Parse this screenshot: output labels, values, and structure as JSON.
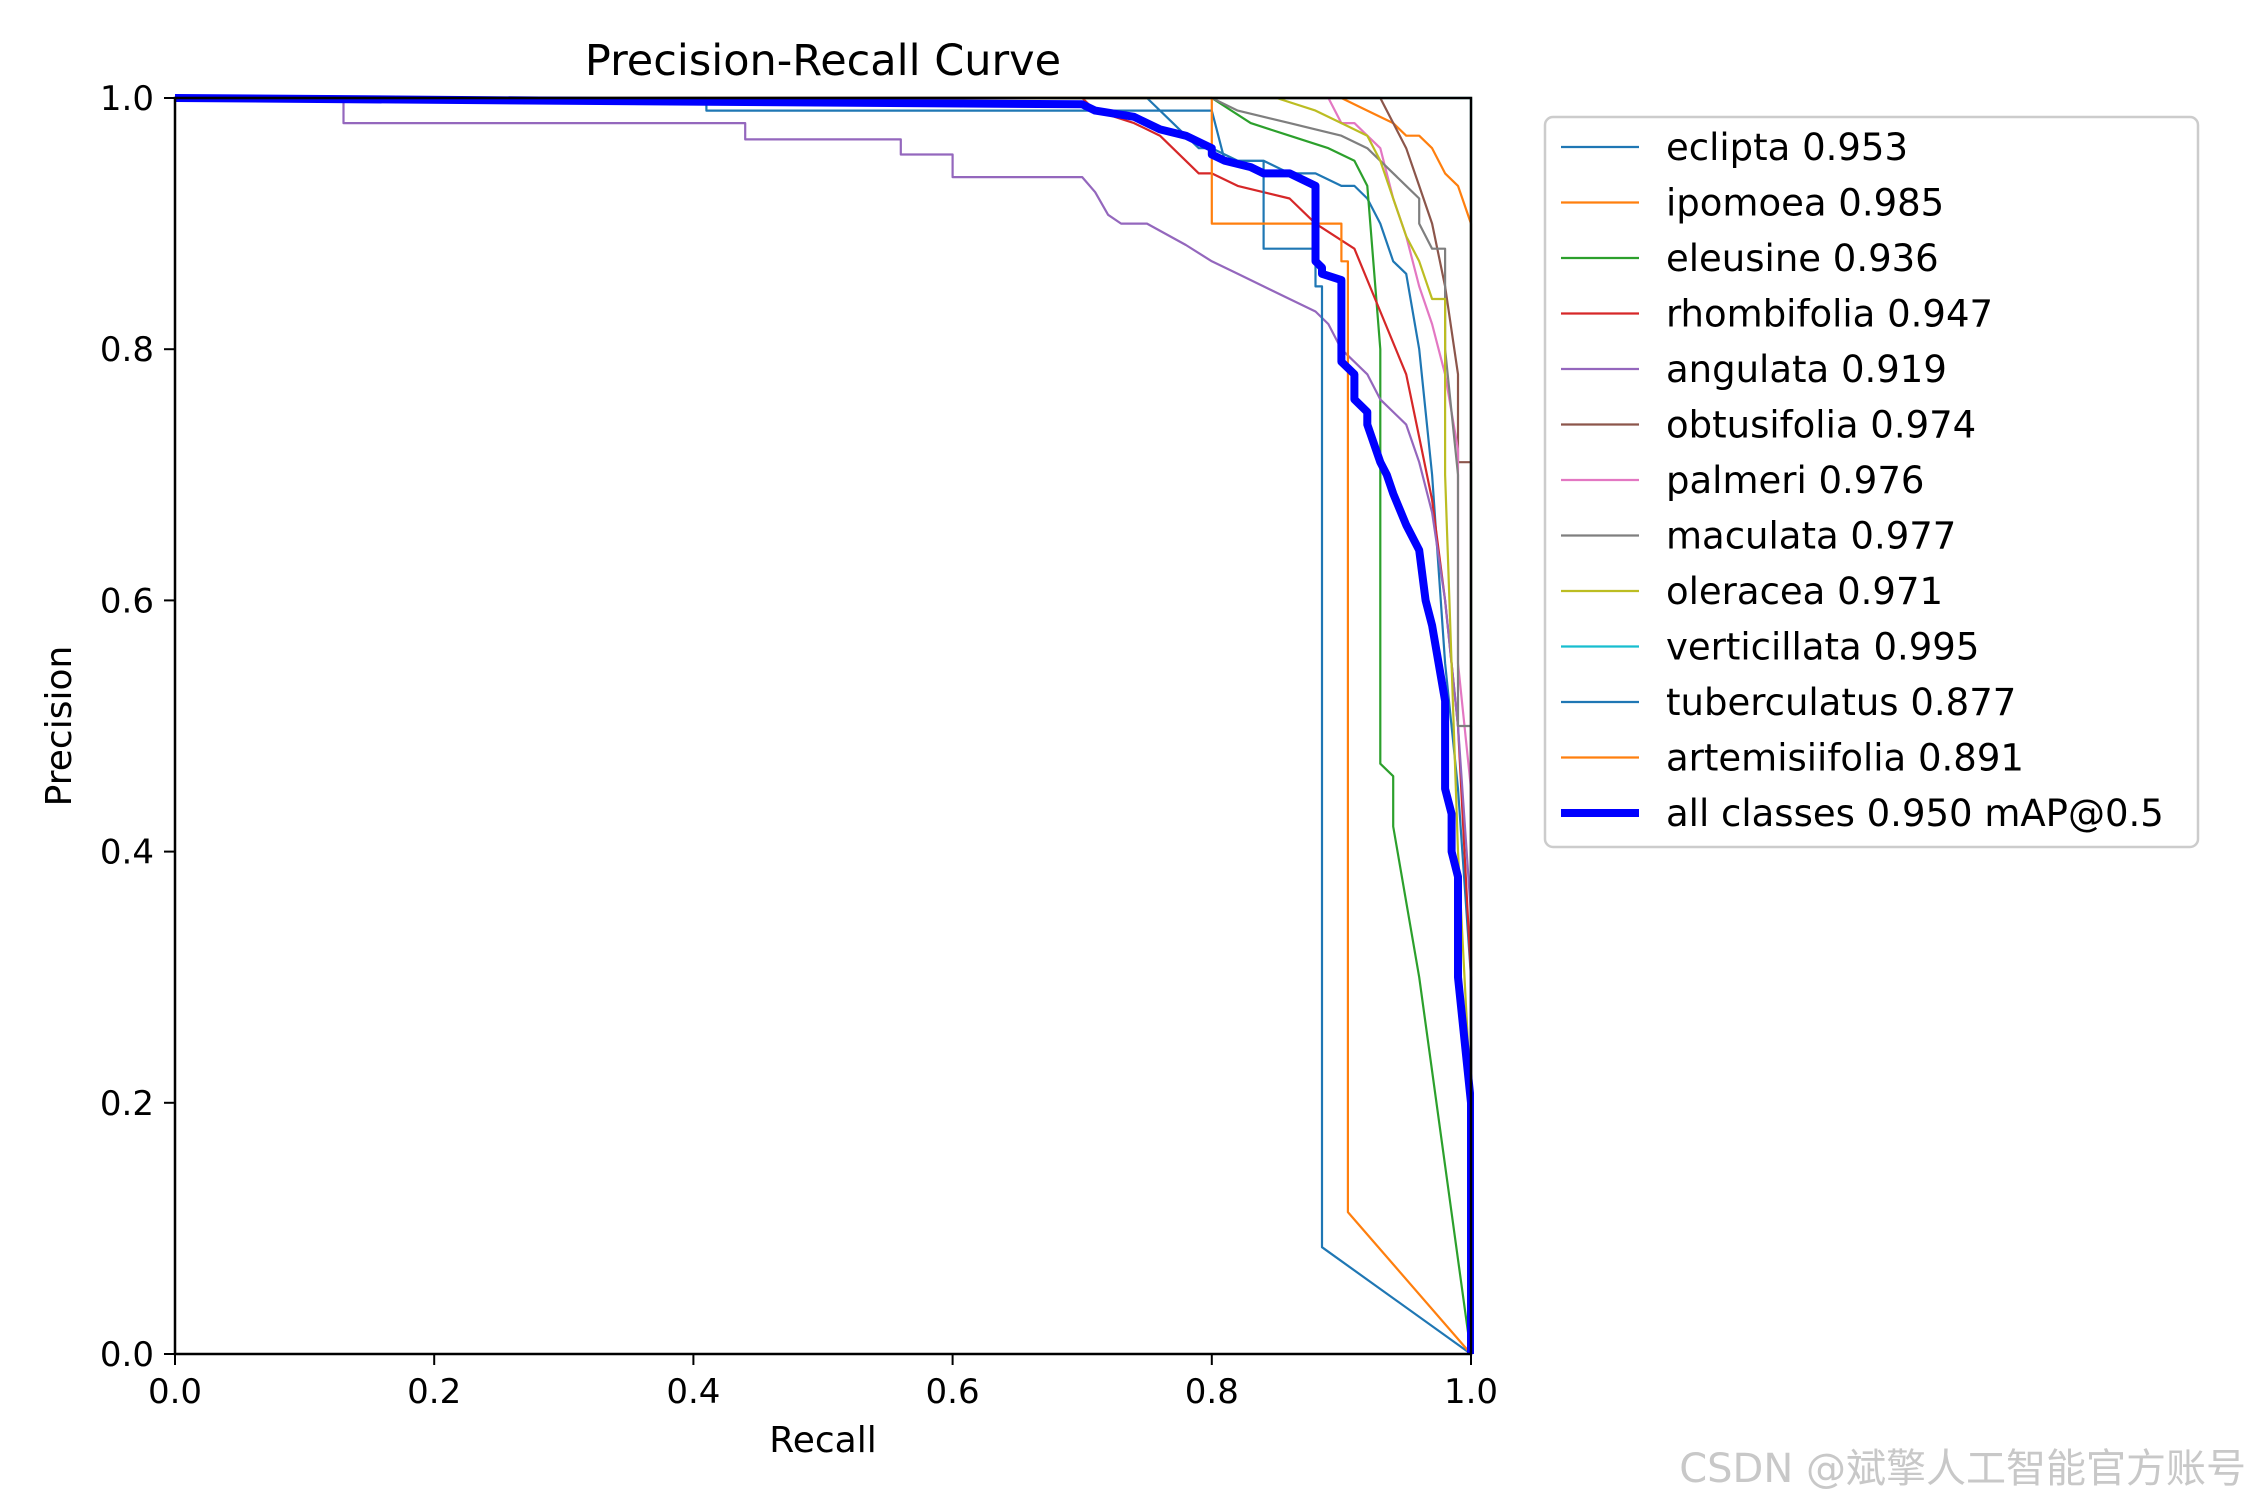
{
  "chart_data": {
    "type": "line",
    "title": "Precision-Recall Curve",
    "xlabel": "Recall",
    "ylabel": "Precision",
    "xlim": [
      0,
      1
    ],
    "ylim": [
      0,
      1
    ],
    "xticks": [
      "0.0",
      "0.2",
      "0.4",
      "0.6",
      "0.8",
      "1.0"
    ],
    "yticks": [
      "0.0",
      "0.2",
      "0.4",
      "0.6",
      "0.8",
      "1.0"
    ],
    "grid": false,
    "legend_position": "outside-right",
    "series": [
      {
        "name": "eclipta",
        "label": "eclipta 0.953",
        "ap": 0.953,
        "color": "#1f77b4",
        "width": "thin",
        "x": [
          0,
          0.75,
          0.77,
          0.79,
          0.8,
          0.82,
          0.84,
          0.86,
          0.88,
          0.9,
          0.91,
          0.92,
          0.93,
          0.94,
          0.95,
          0.96,
          0.97,
          0.98,
          0.99,
          1.0,
          1.0
        ],
        "y": [
          1.0,
          1.0,
          0.98,
          0.96,
          0.96,
          0.95,
          0.95,
          0.94,
          0.94,
          0.93,
          0.93,
          0.92,
          0.9,
          0.87,
          0.86,
          0.8,
          0.7,
          0.55,
          0.45,
          0.3,
          0.0
        ]
      },
      {
        "name": "ipomoea",
        "label": "ipomoea 0.985",
        "ap": 0.985,
        "color": "#ff7f0e",
        "width": "thin",
        "x": [
          0,
          0.88,
          0.9,
          0.92,
          0.94,
          0.95,
          0.96,
          0.97,
          0.98,
          0.99,
          1.0,
          1.0
        ],
        "y": [
          1.0,
          1.0,
          1.0,
          0.99,
          0.98,
          0.97,
          0.97,
          0.96,
          0.94,
          0.93,
          0.9,
          0.0
        ]
      },
      {
        "name": "eleusine",
        "label": "eleusine 0.936",
        "ap": 0.936,
        "color": "#2ca02c",
        "width": "thin",
        "x": [
          0,
          0.8,
          0.83,
          0.86,
          0.89,
          0.91,
          0.92,
          0.93,
          0.93,
          0.94,
          0.94,
          0.96,
          0.98,
          1.0
        ],
        "y": [
          1.0,
          1.0,
          0.98,
          0.97,
          0.96,
          0.95,
          0.93,
          0.8,
          0.47,
          0.46,
          0.42,
          0.3,
          0.15,
          0.0
        ]
      },
      {
        "name": "rhombifolia",
        "label": "rhombifolia 0.947",
        "ap": 0.947,
        "color": "#d62728",
        "width": "thin",
        "x": [
          0,
          0.7,
          0.71,
          0.74,
          0.76,
          0.79,
          0.8,
          0.82,
          0.86,
          0.88,
          0.91,
          0.93,
          0.95,
          0.96,
          0.97,
          0.98,
          0.99,
          1.0,
          1.0
        ],
        "y": [
          1.0,
          1.0,
          0.99,
          0.98,
          0.97,
          0.94,
          0.94,
          0.93,
          0.92,
          0.9,
          0.88,
          0.83,
          0.78,
          0.73,
          0.68,
          0.6,
          0.5,
          0.3,
          0.0
        ]
      },
      {
        "name": "angulata",
        "label": "angulata 0.919",
        "ap": 0.919,
        "color": "#9467bd",
        "width": "thin",
        "x": [
          0,
          0.13,
          0.13,
          0.44,
          0.44,
          0.56,
          0.56,
          0.6,
          0.6,
          0.7,
          0.71,
          0.72,
          0.73,
          0.75,
          0.78,
          0.8,
          0.82,
          0.84,
          0.86,
          0.88,
          0.89,
          0.9,
          0.92,
          0.93,
          0.95,
          0.96,
          0.97,
          0.98,
          0.99,
          1.0,
          1.0
        ],
        "y": [
          1.0,
          1.0,
          0.98,
          0.98,
          0.967,
          0.967,
          0.955,
          0.955,
          0.937,
          0.937,
          0.925,
          0.907,
          0.9,
          0.9,
          0.883,
          0.87,
          0.86,
          0.85,
          0.84,
          0.83,
          0.82,
          0.8,
          0.78,
          0.76,
          0.74,
          0.71,
          0.67,
          0.6,
          0.5,
          0.35,
          0.0
        ]
      },
      {
        "name": "obtusifolia",
        "label": "obtusifolia 0.974",
        "ap": 0.974,
        "color": "#8c564b",
        "width": "thin",
        "x": [
          0,
          0.93,
          0.95,
          0.96,
          0.97,
          0.98,
          0.99,
          0.99,
          1.0,
          1.0,
          1.0
        ],
        "y": [
          1.0,
          1.0,
          0.96,
          0.93,
          0.9,
          0.85,
          0.78,
          0.71,
          0.71,
          0.64,
          0.0
        ]
      },
      {
        "name": "palmeri",
        "label": "palmeri 0.976",
        "ap": 0.976,
        "color": "#e377c2",
        "width": "thin",
        "x": [
          0,
          0.89,
          0.9,
          0.91,
          0.93,
          0.94,
          0.95,
          0.96,
          0.97,
          0.98,
          0.99,
          0.99,
          1.0,
          1.0
        ],
        "y": [
          1.0,
          1.0,
          0.98,
          0.98,
          0.96,
          0.92,
          0.89,
          0.85,
          0.82,
          0.78,
          0.72,
          0.55,
          0.45,
          0.0
        ]
      },
      {
        "name": "maculata",
        "label": "maculata 0.977",
        "ap": 0.977,
        "color": "#7f7f7f",
        "width": "thin",
        "x": [
          0,
          0.8,
          0.82,
          0.86,
          0.9,
          0.92,
          0.93,
          0.95,
          0.96,
          0.96,
          0.97,
          0.98,
          0.98,
          0.99,
          0.99,
          1.0,
          1.0
        ],
        "y": [
          1.0,
          1.0,
          0.99,
          0.98,
          0.97,
          0.96,
          0.95,
          0.93,
          0.92,
          0.9,
          0.88,
          0.88,
          0.8,
          0.7,
          0.5,
          0.5,
          0.0
        ]
      },
      {
        "name": "oleracea",
        "label": "oleracea 0.971",
        "ap": 0.971,
        "color": "#bcbd22",
        "width": "thin",
        "x": [
          0,
          0.85,
          0.88,
          0.9,
          0.92,
          0.93,
          0.94,
          0.95,
          0.96,
          0.97,
          0.98,
          0.98,
          0.99,
          1.0,
          1.0
        ],
        "y": [
          1.0,
          1.0,
          0.99,
          0.98,
          0.97,
          0.95,
          0.92,
          0.89,
          0.87,
          0.84,
          0.84,
          0.7,
          0.4,
          0.2,
          0.0
        ]
      },
      {
        "name": "verticillata",
        "label": "verticillata 0.995",
        "ap": 0.995,
        "color": "#17becf",
        "width": "thin",
        "x": [
          0,
          1.0,
          1.0
        ],
        "y": [
          1.0,
          1.0,
          0.0
        ]
      },
      {
        "name": "tuberculatus",
        "label": "tuberculatus 0.877",
        "ap": 0.877,
        "color": "#1f77b4",
        "width": "thin",
        "x": [
          0,
          0.41,
          0.41,
          0.8,
          0.81,
          0.84,
          0.84,
          0.88,
          0.88,
          0.885,
          0.885,
          1.0
        ],
        "y": [
          1.0,
          1.0,
          0.99,
          0.99,
          0.95,
          0.95,
          0.88,
          0.88,
          0.85,
          0.85,
          0.085,
          0.0
        ]
      },
      {
        "name": "artemisiifolia",
        "label": "artemisiifolia 0.891",
        "ap": 0.891,
        "color": "#ff7f0e",
        "width": "thin",
        "x": [
          0,
          0.8,
          0.8,
          0.87,
          0.9,
          0.9,
          0.905,
          0.905,
          1.0
        ],
        "y": [
          1.0,
          1.0,
          0.9,
          0.9,
          0.9,
          0.87,
          0.87,
          0.113,
          0.0
        ]
      },
      {
        "name": "all classes",
        "label": "all classes 0.950 mAP@0.5",
        "ap": 0.95,
        "color": "#0000ff",
        "width": "thick",
        "x": [
          0,
          0.7,
          0.71,
          0.74,
          0.76,
          0.78,
          0.8,
          0.8,
          0.81,
          0.83,
          0.84,
          0.86,
          0.87,
          0.88,
          0.88,
          0.885,
          0.885,
          0.9,
          0.9,
          0.91,
          0.91,
          0.92,
          0.92,
          0.93,
          0.935,
          0.94,
          0.95,
          0.96,
          0.965,
          0.97,
          0.975,
          0.98,
          0.98,
          0.985,
          0.985,
          0.99,
          0.99,
          1.0,
          1.0
        ],
        "y": [
          1.0,
          0.995,
          0.99,
          0.985,
          0.975,
          0.97,
          0.96,
          0.955,
          0.95,
          0.945,
          0.94,
          0.94,
          0.935,
          0.93,
          0.87,
          0.865,
          0.86,
          0.855,
          0.79,
          0.78,
          0.76,
          0.75,
          0.74,
          0.71,
          0.7,
          0.685,
          0.66,
          0.64,
          0.6,
          0.58,
          0.55,
          0.52,
          0.45,
          0.43,
          0.4,
          0.38,
          0.3,
          0.2,
          0.0
        ]
      }
    ]
  },
  "watermark": "CSDN @斌擎人工智能官方账号"
}
